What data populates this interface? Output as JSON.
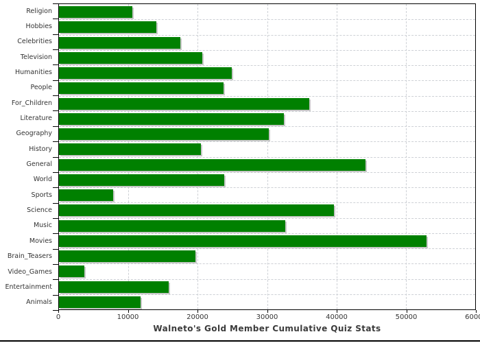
{
  "chart_data": {
    "type": "bar",
    "orientation": "horizontal",
    "title": "Walneto's Gold Member Cumulative Quiz Stats",
    "categories": [
      "Religion",
      "Hobbies",
      "Celebrities",
      "Television",
      "Humanities",
      "People",
      "For_Children",
      "Literature",
      "Geography",
      "History",
      "General",
      "World",
      "Sports",
      "Science",
      "Music",
      "Movies",
      "Brain_Teasers",
      "Video_Games",
      "Entertainment",
      "Animals"
    ],
    "values": [
      10600,
      14000,
      17500,
      20700,
      24900,
      23700,
      36100,
      32400,
      30200,
      20500,
      44200,
      23800,
      7800,
      39600,
      32600,
      53000,
      19700,
      3700,
      15800,
      11800
    ],
    "xlim": [
      0,
      60000
    ],
    "x_ticks": [
      0,
      10000,
      20000,
      30000,
      40000,
      50000,
      60000
    ],
    "xlabel": "",
    "ylabel": "",
    "legend": "none",
    "grid": "dashed-both",
    "bar_color": "#008000",
    "bar_shadow_color": "#c8c8c8",
    "gridline_color": "#cdd0d5",
    "axis_color": "#000000",
    "label_color": "#333333",
    "title_color": "#3b3b3b",
    "background_color": "#ffffff"
  }
}
